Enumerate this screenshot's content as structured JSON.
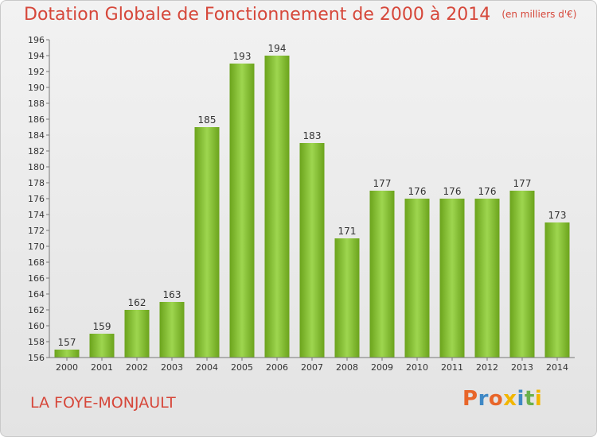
{
  "title": "Dotation Globale de Fonctionnement de 2000 à 2014",
  "title_unit": "(en milliers d'€)",
  "commune": "LA FOYE-MONJAULT",
  "logo": {
    "letters": [
      "P",
      "r",
      "o",
      "x",
      "i",
      "t",
      "i"
    ],
    "colors": [
      "#e8662a",
      "#3f88c5",
      "#e8662a",
      "#f2b600",
      "#3f88c5",
      "#6ab04c",
      "#f2b600"
    ]
  },
  "colors": {
    "bar_light": "#9ed64f",
    "bar_dark": "#6ba31c",
    "title": "#d6473a",
    "axis": "#777777"
  },
  "chart_data": {
    "type": "bar",
    "categories": [
      "2000",
      "2001",
      "2002",
      "2003",
      "2004",
      "2005",
      "2006",
      "2007",
      "2008",
      "2009",
      "2010",
      "2011",
      "2012",
      "2013",
      "2014"
    ],
    "values": [
      157,
      159,
      162,
      163,
      185,
      193,
      194,
      183,
      171,
      177,
      176,
      176,
      176,
      177,
      173
    ],
    "title": "Dotation Globale de Fonctionnement de 2000 à 2014",
    "ylim": [
      156,
      196
    ],
    "yticks": [
      156,
      158,
      160,
      162,
      164,
      166,
      168,
      170,
      172,
      174,
      176,
      178,
      180,
      182,
      184,
      186,
      188,
      190,
      192,
      194,
      196
    ],
    "grid": false,
    "data_labels": true
  }
}
